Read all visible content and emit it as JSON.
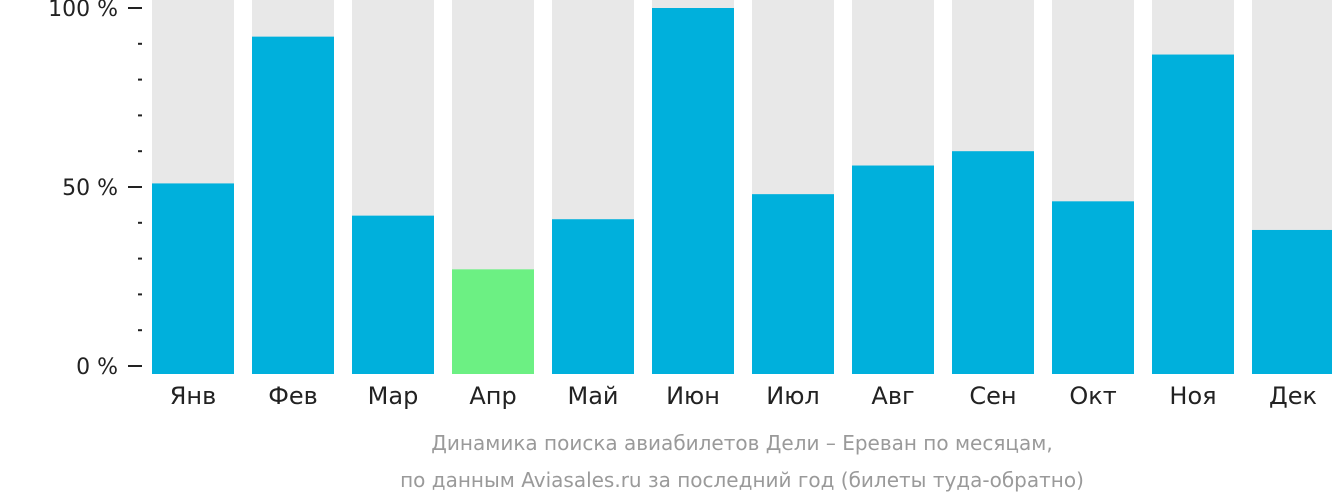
{
  "chart_data": {
    "type": "bar",
    "categories": [
      "Янв",
      "Фев",
      "Мар",
      "Апр",
      "Май",
      "Июн",
      "Июл",
      "Авг",
      "Сен",
      "Окт",
      "Ноя",
      "Дек"
    ],
    "values": [
      51,
      92,
      42,
      27,
      41,
      100,
      48,
      56,
      60,
      46,
      87,
      38
    ],
    "ylim": [
      0,
      100
    ],
    "yticks": [
      {
        "value": 0,
        "label": "0 %"
      },
      {
        "value": 50,
        "label": "50 %"
      },
      {
        "value": 100,
        "label": "100 %"
      }
    ],
    "minor_tick_step": 10,
    "highlight_index": 3,
    "colors": {
      "bar": "#00b0dc",
      "highlight": "#6cf083",
      "background_bar": "#e8e8e8",
      "axis": "#222222"
    },
    "caption": [
      "Динамика поиска авиабилетов Дели – Ереван по месяцам,",
      "по данным Aviasales.ru за последний год (билеты туда-обратно)"
    ]
  }
}
